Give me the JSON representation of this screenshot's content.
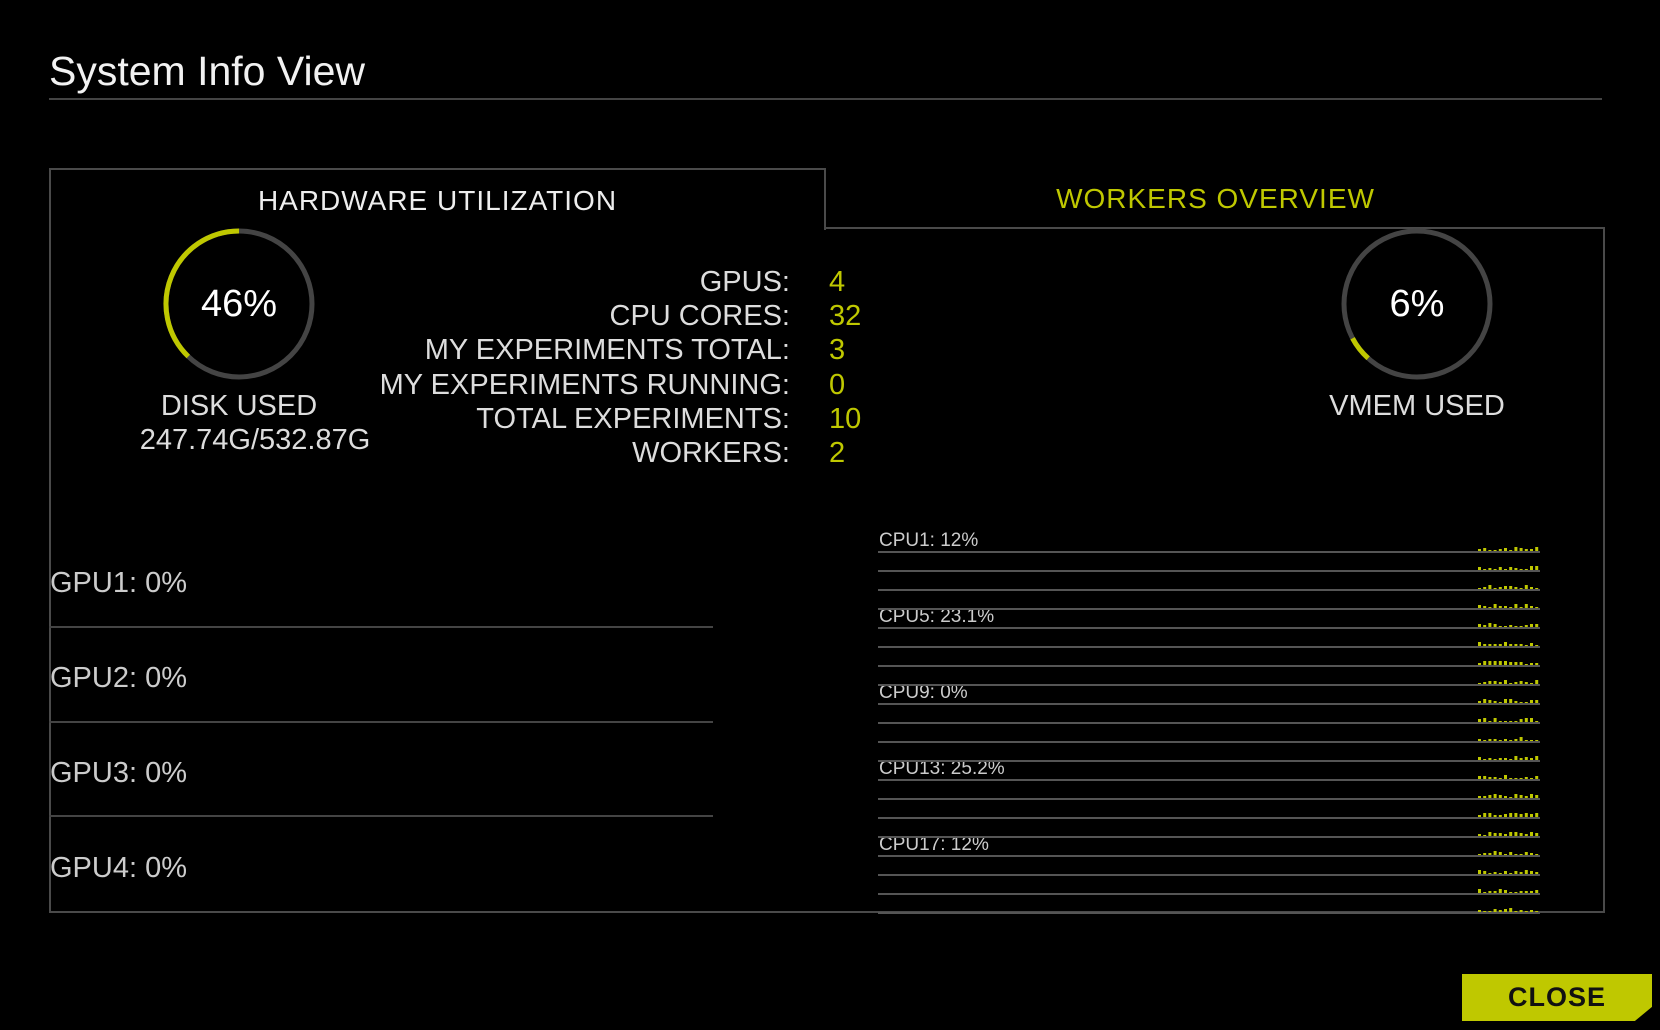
{
  "title": "System Info View",
  "tabs": [
    {
      "label": "HARDWARE UTILIZATION",
      "active": true
    },
    {
      "label": "WORKERS OVERVIEW",
      "active": false
    }
  ],
  "colors": {
    "accent": "#bfc800",
    "track": "#444444",
    "background": "#000000"
  },
  "disk": {
    "percent_label": "46%",
    "percent": 46,
    "label": "DISK USED",
    "detail": "247.74G/532.87G"
  },
  "vmem": {
    "percent_label": "6%",
    "percent": 6,
    "label": "VMEM USED"
  },
  "stats": [
    {
      "label": "GPUS:",
      "value": "4"
    },
    {
      "label": "CPU CORES:",
      "value": "32"
    },
    {
      "label": "MY EXPERIMENTS TOTAL:",
      "value": "3"
    },
    {
      "label": "MY EXPERIMENTS RUNNING:",
      "value": "0"
    },
    {
      "label": "TOTAL EXPERIMENTS:",
      "value": "10"
    },
    {
      "label": "WORKERS:",
      "value": "2"
    }
  ],
  "gpus": [
    "GPU1: 0%",
    "GPU2: 0%",
    "GPU3: 0%",
    "GPU4: 0%"
  ],
  "cpus": [
    "CPU1: 12%",
    "CPU5: 23.1%",
    "CPU9: 0%",
    "CPU13: 25.2%",
    "CPU17: 12%"
  ],
  "close_label": "CLOSE"
}
